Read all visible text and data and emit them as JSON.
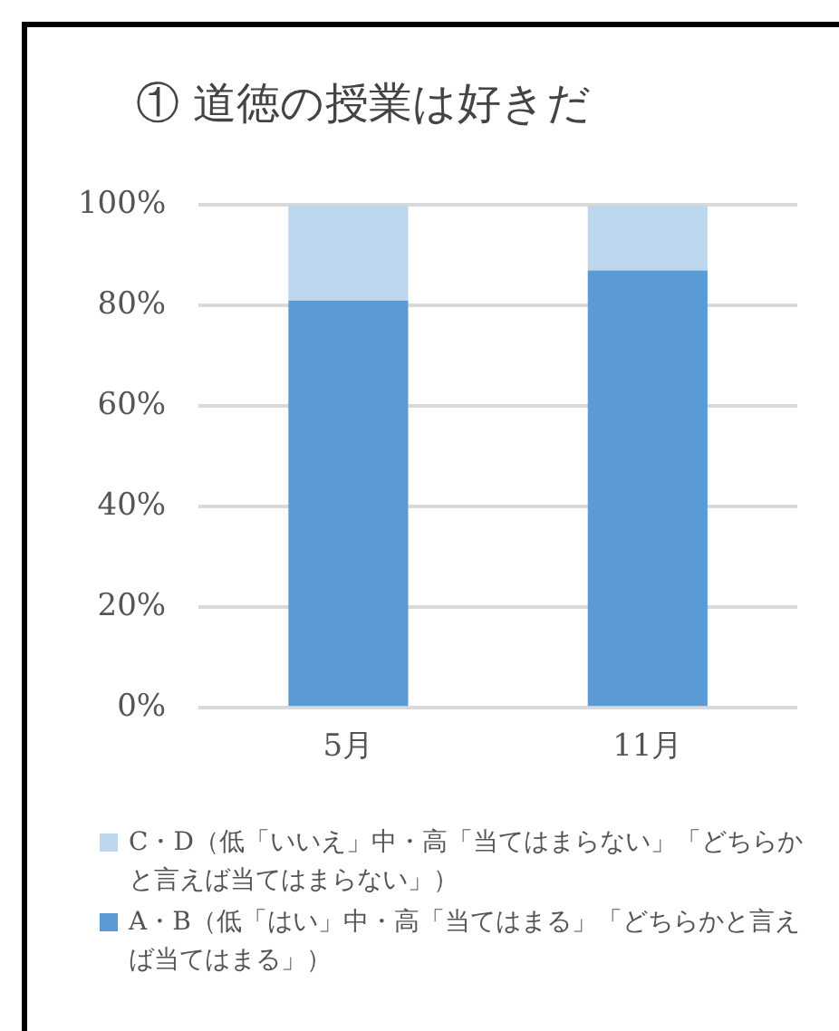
{
  "chart_data": {
    "type": "bar",
    "title": "① 道徳の授業は好きだ",
    "categories": [
      "5月",
      "11月"
    ],
    "stacked": true,
    "series": [
      {
        "name": "A・B（低「はい」中・高「当てはまる」「どちらかと言えば当てはまる」）",
        "color": "#5b9bd5",
        "values": [
          81,
          87
        ]
      },
      {
        "name": "C・D（低「いいえ」中・高「当てはまらない」「どちらかと言えば当てはまらない」）",
        "color": "#bdd7ee",
        "values": [
          19,
          13
        ]
      }
    ],
    "ylim": [
      0,
      100
    ],
    "yticks": [
      {
        "value": 0,
        "label": "0%"
      },
      {
        "value": 20,
        "label": "20%"
      },
      {
        "value": 40,
        "label": "40%"
      },
      {
        "value": 60,
        "label": "60%"
      },
      {
        "value": 80,
        "label": "80%"
      },
      {
        "value": 100,
        "label": "100%"
      }
    ],
    "grid": "y",
    "legend": "bottom"
  }
}
